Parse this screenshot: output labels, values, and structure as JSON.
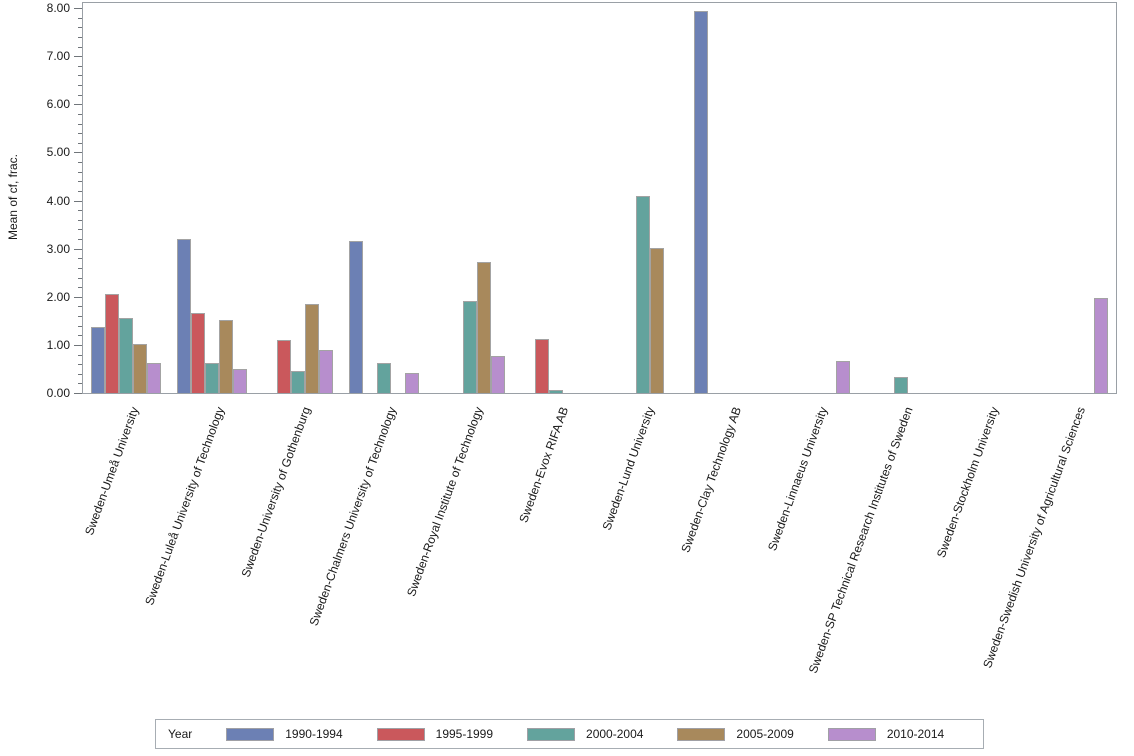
{
  "y_axis": {
    "title": "Mean of cf, frac.",
    "tick_labels": [
      "0.00",
      "1.00",
      "2.00",
      "3.00",
      "4.00",
      "5.00",
      "6.00",
      "7.00",
      "8.00"
    ],
    "min": 0,
    "max": 8,
    "major_step": 1,
    "minor_step": 0.2
  },
  "legend": {
    "title": "Year",
    "position": "bottom"
  },
  "chart_data": {
    "type": "bar",
    "title": "",
    "xlabel": "",
    "ylabel": "Mean of cf, frac.",
    "ylim": [
      0,
      8
    ],
    "grid": false,
    "legend_position": "bottom",
    "categories": [
      "Sweden-Umeå University",
      "Sweden-Luleå University of Technology",
      "Sweden-University of Gothenburg",
      "Sweden-Chalmers University of Technology",
      "Sweden-Royal Institute of Technology",
      "Sweden-Evox RIFA AB",
      "Sweden-Lund University",
      "Sweden-Clay Technology AB",
      "Sweden-Linnaeus University",
      "Sweden-SP Technical Research Institutes of Sweden",
      "Sweden-Stockholm University",
      "Sweden-Swedish University of Agricultural Sciences"
    ],
    "series": [
      {
        "name": "1990-1994",
        "color": "#6c80b4",
        "values": [
          1.37,
          3.2,
          0,
          3.16,
          0,
          0,
          0,
          7.94,
          0,
          0,
          0,
          0
        ]
      },
      {
        "name": "1995-1999",
        "color": "#ca585c",
        "values": [
          2.06,
          1.66,
          1.1,
          0,
          0,
          1.13,
          0,
          0,
          0,
          0,
          0,
          0
        ]
      },
      {
        "name": "2000-2004",
        "color": "#63a39d",
        "values": [
          1.56,
          0.63,
          0.45,
          0.63,
          1.92,
          0.06,
          4.1,
          0,
          0,
          0.34,
          0,
          0
        ]
      },
      {
        "name": "2005-2009",
        "color": "#a8895c",
        "values": [
          1.01,
          1.51,
          1.85,
          0,
          2.72,
          0,
          3.02,
          0,
          0,
          0,
          0,
          0
        ]
      },
      {
        "name": "2010-2014",
        "color": "#b78ecd",
        "values": [
          0.63,
          0.49,
          0.89,
          0.42,
          0.76,
          0,
          0,
          0,
          0.67,
          0,
          0,
          1.97
        ]
      }
    ],
    "colors": {
      "bar_border": "#a3a3a3",
      "frame": "#9aa0a6",
      "tick": "#70757a",
      "text": "#1a1a1a"
    }
  }
}
